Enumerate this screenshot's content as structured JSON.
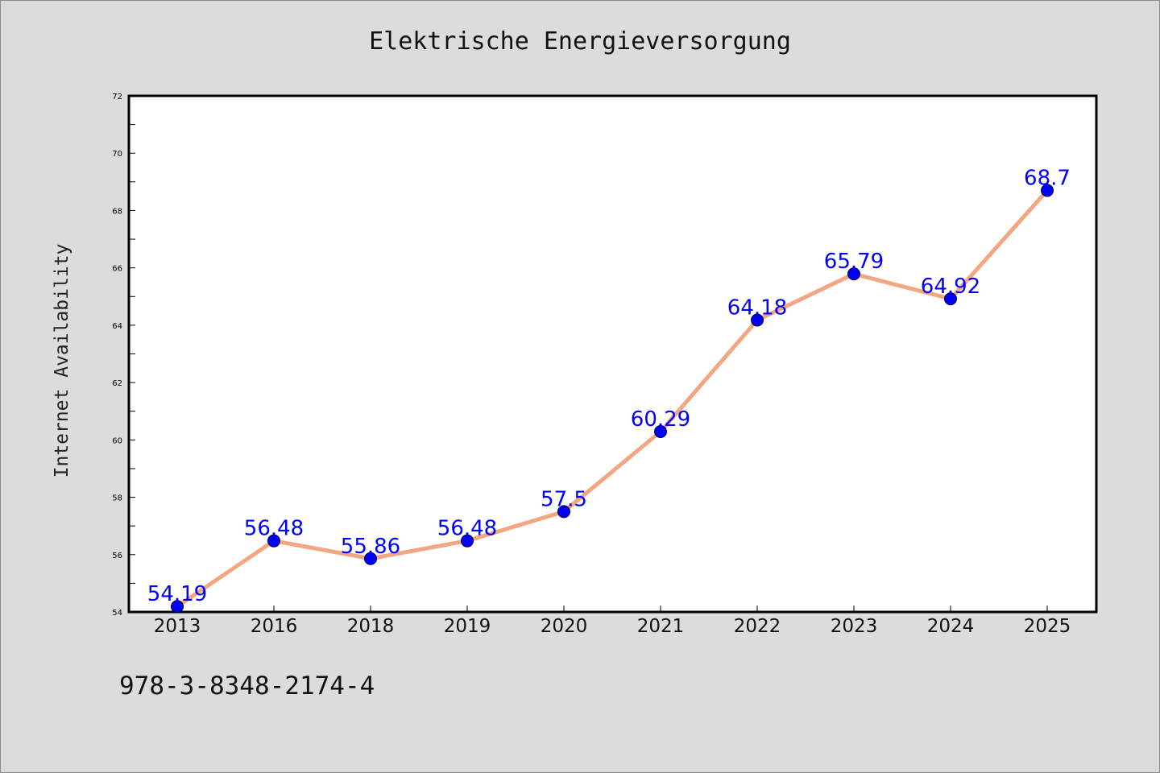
{
  "chart_data": {
    "type": "line",
    "title": "Elektrische Energieversorgung",
    "ylabel": "Internet Availability",
    "xlabel": "",
    "categories": [
      "2013",
      "2016",
      "2018",
      "2019",
      "2020",
      "2021",
      "2022",
      "2023",
      "2024",
      "2025"
    ],
    "series": [
      {
        "values": [
          54.19,
          56.48,
          55.86,
          56.48,
          57.5,
          60.29,
          64.18,
          65.79,
          64.92,
          68.7
        ],
        "data_labels": [
          "54.19",
          "56.48",
          "55.86",
          "56.48",
          "57.5",
          "60.29",
          "64.18",
          "65.79",
          "64.92",
          "68.7"
        ],
        "line_color": "#f4a582",
        "marker_color": "#0000ff",
        "label_color": "#0000ff"
      }
    ],
    "ylim": [
      54,
      72
    ],
    "yticks": [
      "54",
      "56",
      "58",
      "60",
      "62",
      "64",
      "66",
      "68",
      "70",
      "72"
    ],
    "grid": false,
    "legend": "none"
  },
  "footer": {
    "code": "978-3-8348-2174-4"
  }
}
